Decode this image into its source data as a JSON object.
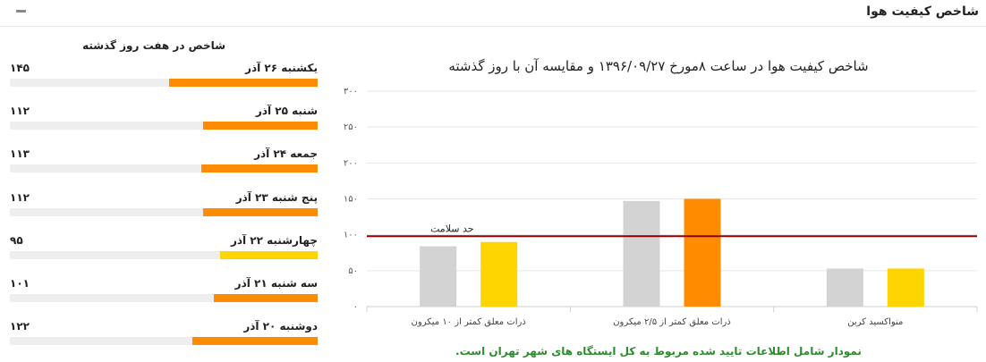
{
  "header": {
    "title": "شاخص کیفیت هوا"
  },
  "weekly": {
    "title": "شاخص در هفت روز گذشته",
    "max": 300,
    "days": [
      {
        "label": "یکشنبه ۲۶ آذر",
        "value": "۱۴۵",
        "num": 145,
        "color": "#ff8c00"
      },
      {
        "label": "شنبه ۲۵ آذر",
        "value": "۱۱۲",
        "num": 112,
        "color": "#ff8c00"
      },
      {
        "label": "جمعه ۲۴ آذر",
        "value": "۱۱۳",
        "num": 113,
        "color": "#ff8c00"
      },
      {
        "label": "پنج شنبه ۲۳ آذر",
        "value": "۱۱۲",
        "num": 112,
        "color": "#ff8c00"
      },
      {
        "label": "چهارشنبه ۲۲ آذر",
        "value": "۹۵",
        "num": 95,
        "color": "#ffd500"
      },
      {
        "label": "سه شنبه ۲۱ آذر",
        "value": "۱۰۱",
        "num": 101,
        "color": "#ff8c00"
      },
      {
        "label": "دوشنبه ۲۰ آذر",
        "value": "۱۲۲",
        "num": 122,
        "color": "#ff8c00"
      }
    ]
  },
  "chart_data": {
    "type": "bar",
    "title": "شاخص کیفیت هوا در ساعت ۸مورخ ۱۳۹۶/۰۹/۲۷ و مقایسه آن با روز گذشته",
    "categories": [
      "منواکسید کربن",
      "ذرات معلق کمتر از ۲/۵ میکرون",
      "ذرات معلق کمتر از ۱۰ میکرون"
    ],
    "series": [
      {
        "values": [
          53,
          147,
          84
        ],
        "colors": [
          "#d3d3d3",
          "#d3d3d3",
          "#d3d3d3"
        ]
      },
      {
        "values": [
          53,
          150,
          90
        ],
        "colors": [
          "#ffd500",
          "#ff8c00",
          "#ffd500"
        ]
      }
    ],
    "ylim": [
      0,
      300
    ],
    "yticks": [
      0,
      50,
      100,
      150,
      200,
      250,
      300
    ],
    "ytick_labels": [
      "۰",
      "۵۰",
      "۱۰۰",
      "۱۵۰",
      "۲۰۰",
      "۲۵۰",
      "۳۰۰"
    ],
    "grid": true,
    "threshold": {
      "value": 98,
      "label": "حد سلامت",
      "color": "#8b0000"
    },
    "footnote": "نمودار شامل اطلاعات تایید شده مربوط به کل ایستگاه های شهر تهران است."
  }
}
